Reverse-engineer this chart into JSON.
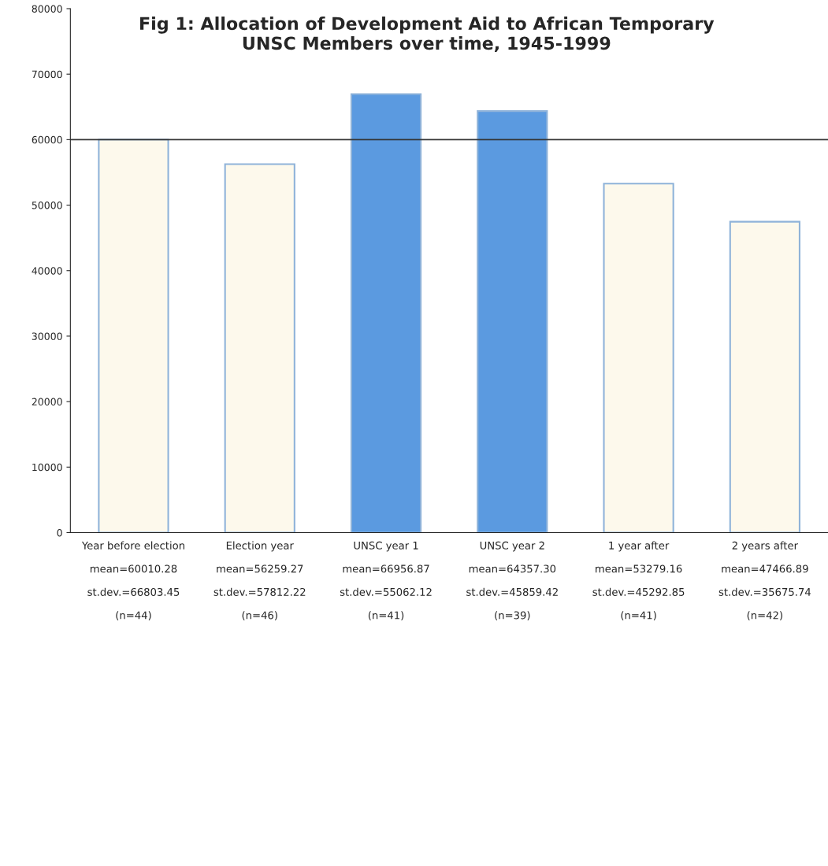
{
  "chart_data": {
    "type": "bar",
    "title": "Fig 1: Allocation of Development Aid to African Temporary\nUNSC Members over time, 1945-1999",
    "categories": [
      "Year before election\n\nmean=60010.28\n\nst.dev.=66803.45\n\n(n=44)",
      "Election year\n\nmean=56259.27\n\nst.dev.=57812.22\n\n(n=46)",
      "UNSC year 1\n\nmean=66956.87\n\nst.dev.=55062.12\n\n(n=41)",
      "UNSC year 2\n\nmean=64357.30\n\nst.dev.=45859.42\n\n(n=39)",
      "1 year after\n\nmean=53279.16\n\nst.dev.=45292.85\n\n(n=41)",
      "2 years after\n\nmean=47466.89\n\nst.dev.=35675.74\n\n(n=42)"
    ],
    "values": [
      60010.28,
      56259.27,
      66956.87,
      64357.3,
      53279.16,
      47466.89
    ],
    "colors": [
      "#fdf9ec",
      "#fdf9ec",
      "#5b9ae0",
      "#5b9ae0",
      "#fdf9ec",
      "#fdf9ec"
    ],
    "ylim": [
      0,
      80000
    ],
    "yticks": [
      0,
      10000,
      20000,
      30000,
      40000,
      50000,
      60000,
      70000,
      80000
    ],
    "ref_lines": [
      {
        "axis": "y",
        "value": 60000,
        "color": "#333333"
      }
    ],
    "grid": false
  }
}
